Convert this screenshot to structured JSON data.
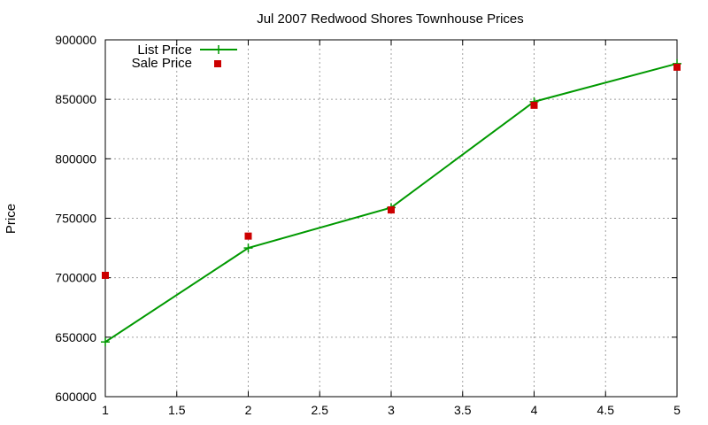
{
  "chart_data": {
    "type": "line",
    "title": "Jul 2007 Redwood Shores Townhouse Prices",
    "xlabel": "",
    "ylabel": "Price",
    "xlim": [
      1,
      5
    ],
    "ylim": [
      600000,
      900000
    ],
    "x_ticks": [
      "1",
      "1.5",
      "2",
      "2.5",
      "3",
      "3.5",
      "4",
      "4.5",
      "5"
    ],
    "y_ticks": [
      "600000",
      "650000",
      "700000",
      "750000",
      "800000",
      "850000",
      "900000"
    ],
    "grid": true,
    "legend_position": "top-left",
    "series": [
      {
        "name": "List Price",
        "style": "line-with-plus-markers",
        "color": "#009900",
        "x": [
          1,
          2,
          3,
          4,
          5
        ],
        "y": [
          646000,
          725000,
          759000,
          848000,
          880000
        ]
      },
      {
        "name": "Sale Price",
        "style": "square-markers",
        "color": "#cc0000",
        "x": [
          1,
          2,
          3,
          4,
          5
        ],
        "y": [
          702000,
          735000,
          757000,
          845000,
          877000
        ]
      }
    ]
  }
}
